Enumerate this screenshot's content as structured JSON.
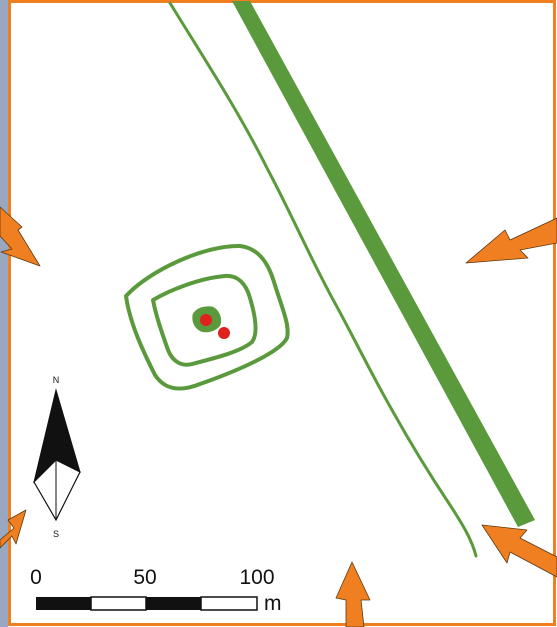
{
  "map": {
    "frame_color": "#f07f21",
    "feature_color": "#5a9a3c",
    "site_color": "#e0201c",
    "arrow_color": "#f07f21",
    "arrow_outline_color": "#5a3a12",
    "left_edge_color": "#9aa7c0"
  },
  "north_arrow": {
    "north_label": "N",
    "south_label": "S",
    "icon": "north-arrow-icon"
  },
  "scale_bar": {
    "ticks": [
      "0",
      "50",
      "100"
    ],
    "unit": "m"
  },
  "site_markers": {
    "count": 2
  },
  "pointer_arrows": {
    "count": 5
  }
}
